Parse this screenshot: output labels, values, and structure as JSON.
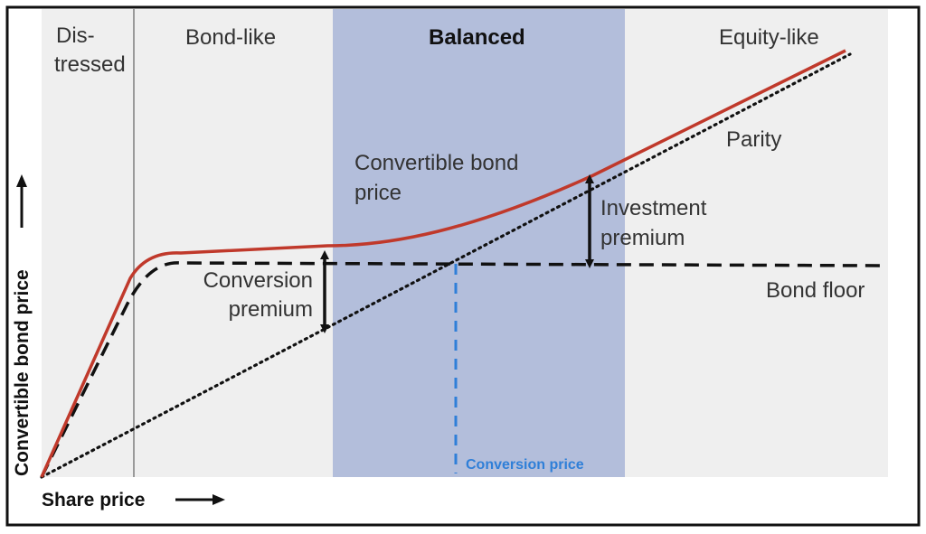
{
  "regions": {
    "distressed": {
      "line1": "Dis-",
      "line2": "tressed"
    },
    "bond_like": "Bond-like",
    "balanced": "Balanced",
    "equity_like": "Equity-like"
  },
  "curves": {
    "convertible_bond_price": {
      "line1": "Convertible bond",
      "line2": "price"
    },
    "parity": "Parity",
    "bond_floor": "Bond floor"
  },
  "annotations": {
    "conversion_premium": {
      "line1": "Conversion",
      "line2": "premium"
    },
    "investment_premium": {
      "line1": "Investment",
      "line2": "premium"
    },
    "conversion_price": "Conversion price"
  },
  "axes": {
    "x_label": "Share price",
    "y_label": "Convertible bond price"
  },
  "colors": {
    "region_gray": "#efefef",
    "region_blue": "#b3bedb",
    "cb_price_line": "#c0392b",
    "conversion_price_line": "#2f7fd8",
    "conversion_price_text": "#2f7fd8",
    "dark": "#111111"
  }
}
